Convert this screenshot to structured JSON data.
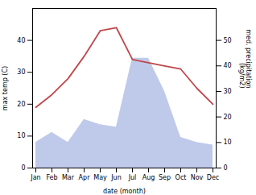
{
  "chart_data": {
    "type": "line",
    "xlabel": "date (month)",
    "ylabel": "max temp (C)",
    "y2label": "med. precipitation\n(kg/m2)",
    "categories": [
      "Jan",
      "Feb",
      "Mar",
      "Apr",
      "May",
      "Jun",
      "Jul",
      "Aug",
      "Sep",
      "Oct",
      "Nov",
      "Dec"
    ],
    "series": [
      {
        "type": "area",
        "axis": "y2",
        "color": "#b8c4e8",
        "values": [
          10,
          14,
          10,
          19,
          17,
          16,
          43,
          43,
          30,
          12,
          10,
          9
        ]
      },
      {
        "type": "line",
        "color": "#c0474a",
        "values": [
          19,
          23,
          28,
          35,
          43,
          44,
          34,
          33,
          32,
          31,
          25,
          20
        ]
      }
    ],
    "ylim": [
      0,
      50
    ],
    "yticks": [
      0,
      10,
      20,
      30,
      40
    ],
    "y2lim": [
      0,
      62.5
    ],
    "y2ticks": [
      0,
      10,
      20,
      30,
      40,
      50
    ],
    "grid": false
  }
}
